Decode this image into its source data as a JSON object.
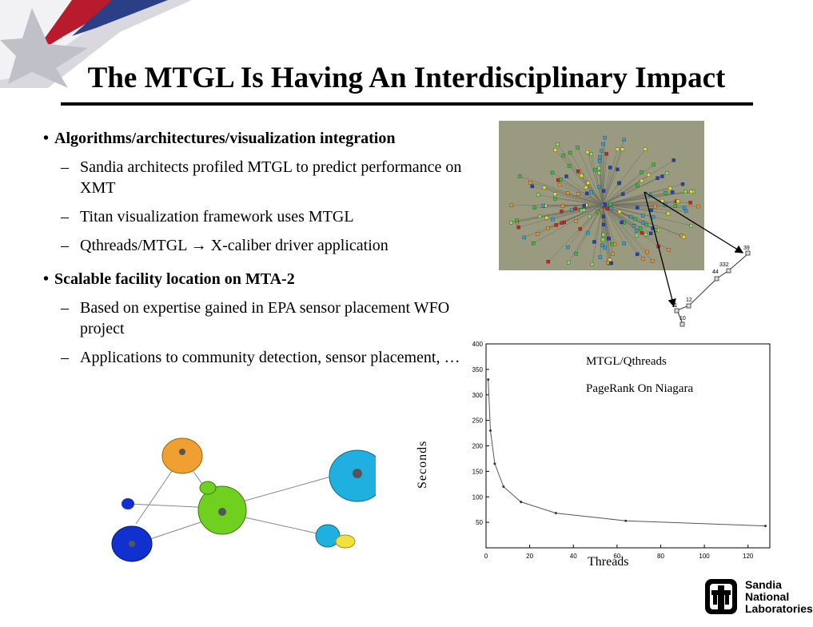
{
  "title": "The MTGL Is Having An Interdisciplinary Impact",
  "bullets": [
    {
      "label": "Algorithms/architectures/visualization integration",
      "subitems": [
        "Sandia architects profiled MTGL to predict performance on XMT",
        "Titan visualization framework uses MTGL",
        "Qthreads/MTGL → X-caliber driver application"
      ]
    },
    {
      "label": "Scalable facility location on MTA-2",
      "subitems": [
        "Based on expertise gained in EPA sensor placement WFO project",
        "Applications to community detection, sensor placement, …"
      ]
    }
  ],
  "chart_data": {
    "type": "line",
    "legend": [
      "MTGL/Qthreads",
      "PageRank On Niagara"
    ],
    "xlabel": "Threads",
    "ylabel": "Seconds",
    "xlim": [
      0,
      130
    ],
    "ylim": [
      0,
      400
    ],
    "xticks": [
      0,
      20,
      40,
      60,
      80,
      100,
      120
    ],
    "yticks": [
      50,
      100,
      150,
      200,
      250,
      300,
      350,
      400
    ],
    "series": [
      {
        "x": [
          1,
          2,
          4,
          8,
          16,
          32,
          64,
          128
        ],
        "y": [
          330,
          230,
          165,
          120,
          90,
          68,
          53,
          43
        ]
      }
    ]
  },
  "zoom_labels": [
    "39",
    "332",
    "44",
    "12",
    "11",
    "10"
  ],
  "logo": {
    "line1": "Sandia",
    "line2": "National",
    "line3": "Laboratories"
  },
  "colors": {
    "network_bg": "#9a9a80",
    "cluster_orange": "#f0a030",
    "cluster_green": "#70d020",
    "cluster_blue": "#1030d0",
    "cluster_cyan": "#20b0e0",
    "cluster_yellow": "#f0e040"
  }
}
